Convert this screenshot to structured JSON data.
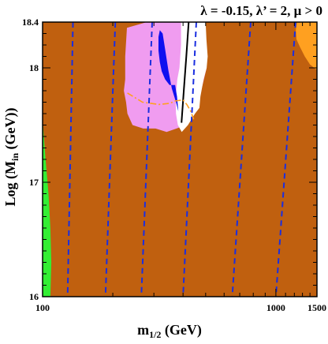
{
  "chart_data": {
    "type": "contour",
    "title": "λ = -0.15, λ’ = 2,  μ > 0",
    "xlabel": "m1/2 (GeV)",
    "xlabel_main": "m",
    "xlabel_sub": "1/2",
    "xlabel_unit": " (GeV)",
    "ylabel": "Log (Min (GeV))",
    "ylabel_main": "Log (M",
    "ylabel_sub": "in",
    "ylabel_unit": " (GeV))",
    "x_scale": "log",
    "xlim": [
      100,
      1500
    ],
    "ylim": [
      16,
      18.4
    ],
    "x_ticks": [
      {
        "value": 100,
        "label": "100"
      },
      {
        "value": 1000,
        "label": "1000"
      },
      {
        "value": 1500,
        "label": "1500"
      }
    ],
    "y_ticks": [
      {
        "value": 16,
        "label": "16"
      },
      {
        "value": 17,
        "label": "17"
      },
      {
        "value": 18,
        "label": "18"
      },
      {
        "value": 18.4,
        "label": "18.4"
      }
    ],
    "colors": {
      "excluded_brown": "#c0600f",
      "pink_region": "#f09cf0",
      "blue_region": "#1010f0",
      "white_region": "#ffffff",
      "orange_region": "#ffa020",
      "green_region": "#33ee33",
      "dashed_lines": "#1a2ee0",
      "black_line": "#000000",
      "dashdot_line": "#ffa020"
    },
    "regions": [
      {
        "name": "pink",
        "points": [
          [
            316,
            18.4
          ],
          [
            280,
            18.4
          ],
          [
            230,
            18.35
          ],
          [
            226,
            18.1
          ],
          [
            226,
            17.9
          ],
          [
            223,
            17.8
          ],
          [
            228,
            17.7
          ],
          [
            231,
            17.6
          ],
          [
            243,
            17.5
          ],
          [
            270,
            17.47
          ],
          [
            305,
            17.47
          ],
          [
            340,
            17.44
          ],
          [
            375,
            17.47
          ],
          [
            410,
            17.5
          ],
          [
            430,
            17.6
          ],
          [
            450,
            17.7
          ],
          [
            470,
            17.75
          ],
          [
            485,
            17.85
          ],
          [
            505,
            18.0
          ],
          [
            500,
            18.1
          ],
          [
            485,
            18.25
          ],
          [
            480,
            18.4
          ]
        ]
      },
      {
        "name": "white",
        "points": [
          [
            392,
            18.4
          ],
          [
            392,
            18.2
          ],
          [
            386,
            18.0
          ],
          [
            378,
            17.9
          ],
          [
            372,
            17.74
          ],
          [
            373,
            17.6
          ],
          [
            380,
            17.5
          ],
          [
            395,
            17.44
          ],
          [
            420,
            17.5
          ],
          [
            450,
            17.6
          ],
          [
            470,
            17.65
          ],
          [
            475,
            17.75
          ],
          [
            490,
            17.9
          ],
          [
            505,
            18.0
          ],
          [
            510,
            18.1
          ],
          [
            504,
            18.25
          ],
          [
            500,
            18.4
          ]
        ]
      },
      {
        "name": "blue",
        "points": [
          [
            314,
            18.27
          ],
          [
            318,
            18.33
          ],
          [
            327,
            18.3
          ],
          [
            336,
            18.15
          ],
          [
            346,
            17.98
          ],
          [
            358,
            17.82
          ],
          [
            373,
            17.7
          ],
          [
            382,
            17.62
          ],
          [
            377,
            17.75
          ],
          [
            370,
            17.85
          ],
          [
            350,
            17.85
          ],
          [
            335,
            17.9
          ],
          [
            324,
            17.97
          ],
          [
            318,
            18.05
          ],
          [
            314,
            18.15
          ]
        ]
      },
      {
        "name": "orange",
        "points": [
          [
            1230,
            18.4
          ],
          [
            1218,
            18.33
          ],
          [
            1225,
            18.25
          ],
          [
            1270,
            18.18
          ],
          [
            1330,
            18.1
          ],
          [
            1400,
            18.03
          ],
          [
            1500,
            17.98
          ],
          [
            1500,
            18.4
          ]
        ]
      },
      {
        "name": "green",
        "points": [
          [
            100,
            17.55
          ],
          [
            103,
            17.2
          ],
          [
            106,
            16.9
          ],
          [
            108,
            16.6
          ],
          [
            109,
            16.3
          ],
          [
            108,
            16.0
          ],
          [
            100,
            16.0
          ]
        ]
      }
    ],
    "series": [
      {
        "style": "dashed",
        "x_top": 135,
        "x_bottom": 128
      },
      {
        "style": "dashed",
        "x_top": 205,
        "x_bottom": 186
      },
      {
        "style": "dashed",
        "x_top": 295,
        "x_bottom": 265
      },
      {
        "style": "dashed",
        "x_top": 456,
        "x_bottom": 400
      },
      {
        "style": "dashed",
        "x_top": 780,
        "x_bottom": 650
      },
      {
        "style": "dashed",
        "x_top": 1215,
        "x_bottom": 1000
      },
      {
        "style": "solid",
        "points": [
          [
            423,
            18.4
          ],
          [
            413,
            18.1
          ],
          [
            403,
            17.8
          ],
          [
            394,
            17.52
          ]
        ]
      },
      {
        "style": "dashdot",
        "points": [
          [
            231,
            17.78
          ],
          [
            268,
            17.7
          ],
          [
            315,
            17.68
          ],
          [
            352,
            17.69
          ],
          [
            370,
            17.71
          ],
          [
            400,
            17.72
          ],
          [
            415,
            17.68
          ],
          [
            432,
            17.62
          ],
          [
            444,
            17.55
          ]
        ]
      }
    ]
  }
}
